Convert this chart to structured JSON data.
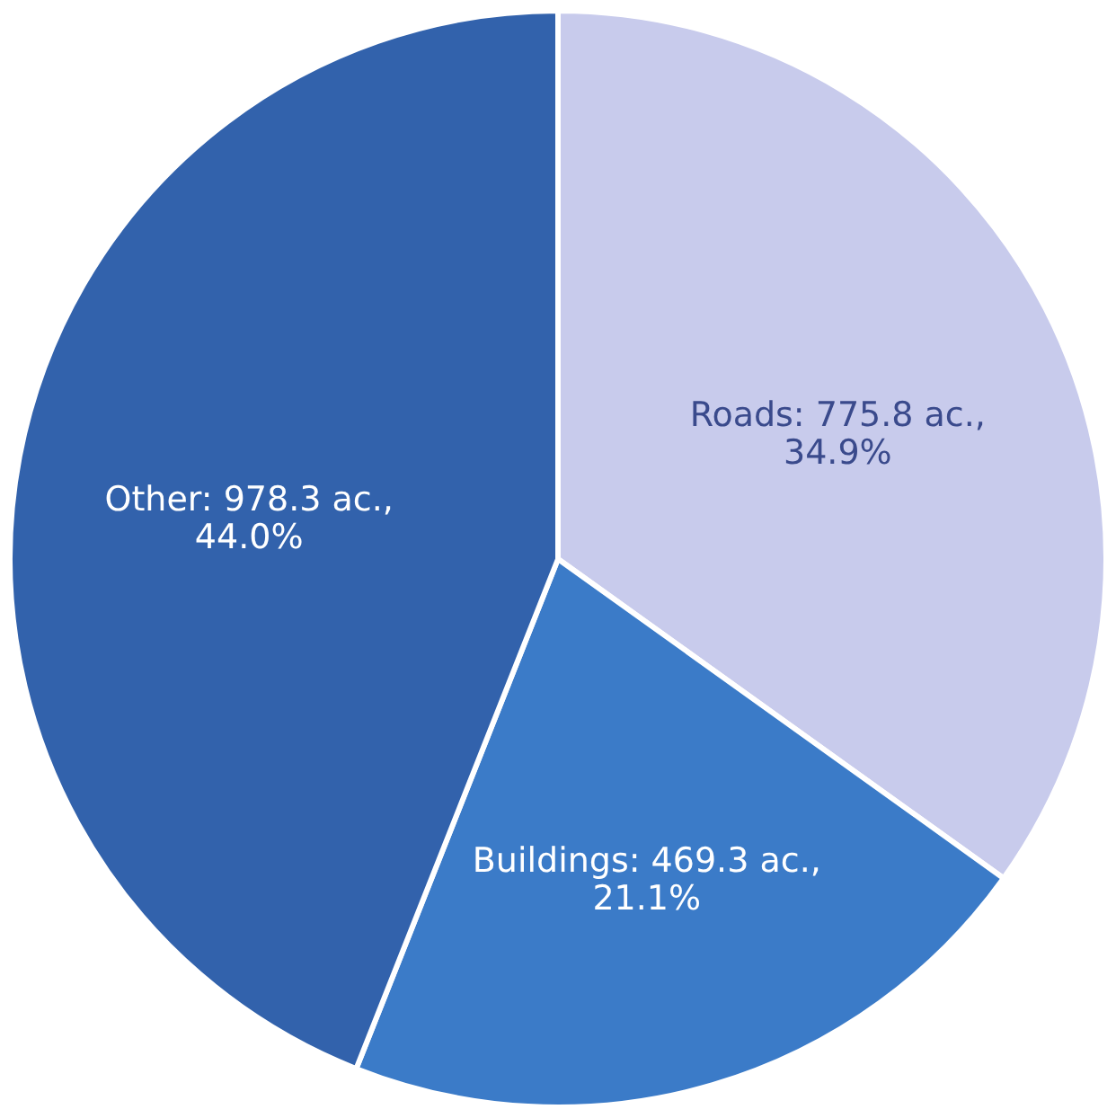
{
  "chart_data": {
    "type": "pie",
    "categories": [
      "Roads",
      "Buildings",
      "Other"
    ],
    "values": [
      775.8,
      469.3,
      978.3
    ],
    "colors": [
      "#c8cbec",
      "#3b7bc8",
      "#3262ac"
    ],
    "value_labels": [
      "775.8 ac.,\n34.9%",
      "469.3 ac.,\n21.1%",
      "978.3 ac.,\n44.0%"
    ]
  }
}
